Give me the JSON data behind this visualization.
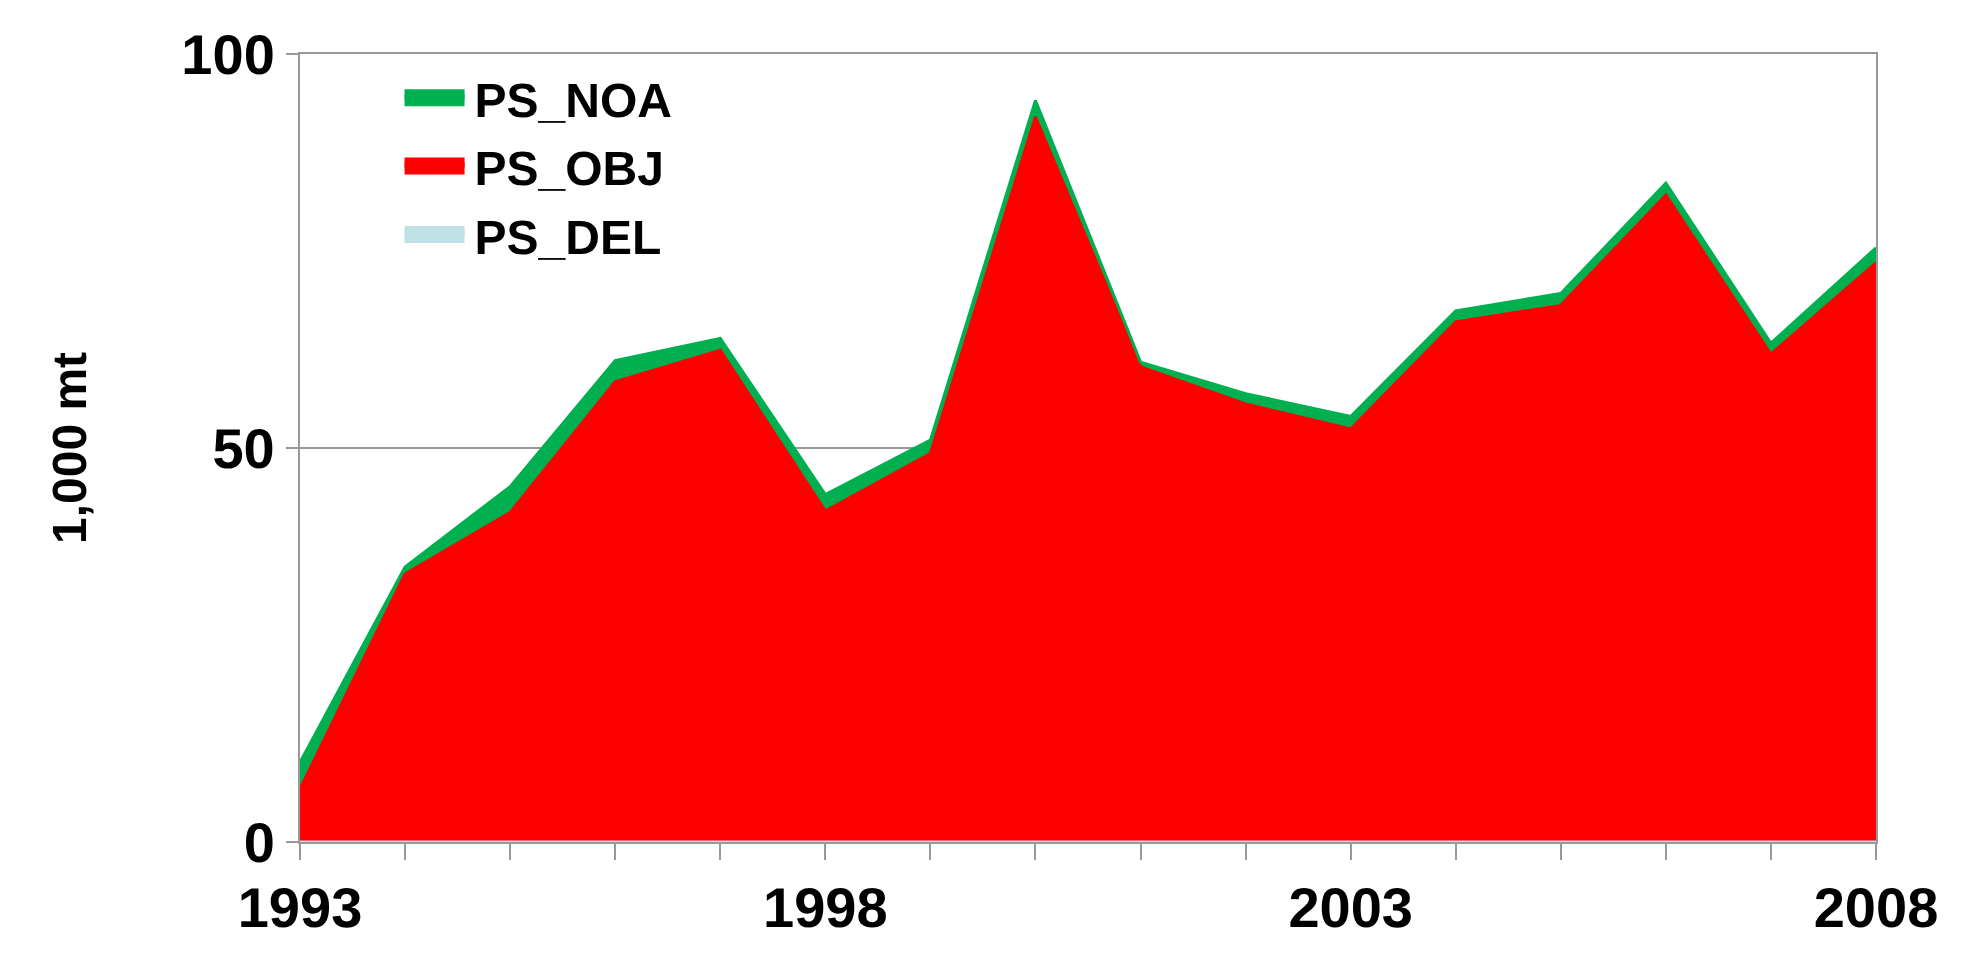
{
  "chart_data": {
    "type": "area",
    "stacked": true,
    "ylabel": "1,000 mt",
    "x": [
      1993,
      1994,
      1995,
      1996,
      1997,
      1998,
      1999,
      2000,
      2001,
      2002,
      2003,
      2004,
      2005,
      2006,
      2007,
      2008
    ],
    "series": [
      {
        "name": "PS_DEL",
        "color": "#bfe1e5",
        "values": [
          null,
          null,
          null,
          null,
          null,
          null,
          null,
          null,
          null,
          null,
          null,
          null,
          null,
          null,
          null,
          null
        ]
      },
      {
        "name": "PS_OBJ",
        "color": "#ff0000",
        "values": [
          6.7,
          34.0,
          41.8,
          58.4,
          62.4,
          42.0,
          49.3,
          92.0,
          60.3,
          55.6,
          52.4,
          66.0,
          68.1,
          82.1,
          61.9,
          73.5
        ]
      },
      {
        "name": "PS_NOA",
        "color": "#00b050",
        "values": [
          3.4,
          0.9,
          3.3,
          2.7,
          1.5,
          2.1,
          1.7,
          2.1,
          0.6,
          1.3,
          1.6,
          1.4,
          1.5,
          1.5,
          1.4,
          1.9
        ]
      }
    ],
    "xlim": [
      1993,
      2008
    ],
    "xticks": [
      1993,
      {
        "value": 1994,
        "label": null
      },
      {
        "value": 1995,
        "label": null
      },
      {
        "value": 1996,
        "label": null
      },
      {
        "value": 1997,
        "label": null
      },
      1998,
      {
        "value": 1999,
        "label": null
      },
      {
        "value": 2000,
        "label": null
      },
      {
        "value": 2001,
        "label": null
      },
      {
        "value": 2002,
        "label": null
      },
      2003,
      {
        "value": 2004,
        "label": null
      },
      {
        "value": 2005,
        "label": null
      },
      {
        "value": 2006,
        "label": null
      },
      {
        "value": 2007,
        "label": null
      },
      2008
    ],
    "ylim": [
      0,
      100
    ],
    "yticks": [
      0,
      50,
      100
    ],
    "grid": "y",
    "legend": "top left",
    "marker": "none"
  }
}
